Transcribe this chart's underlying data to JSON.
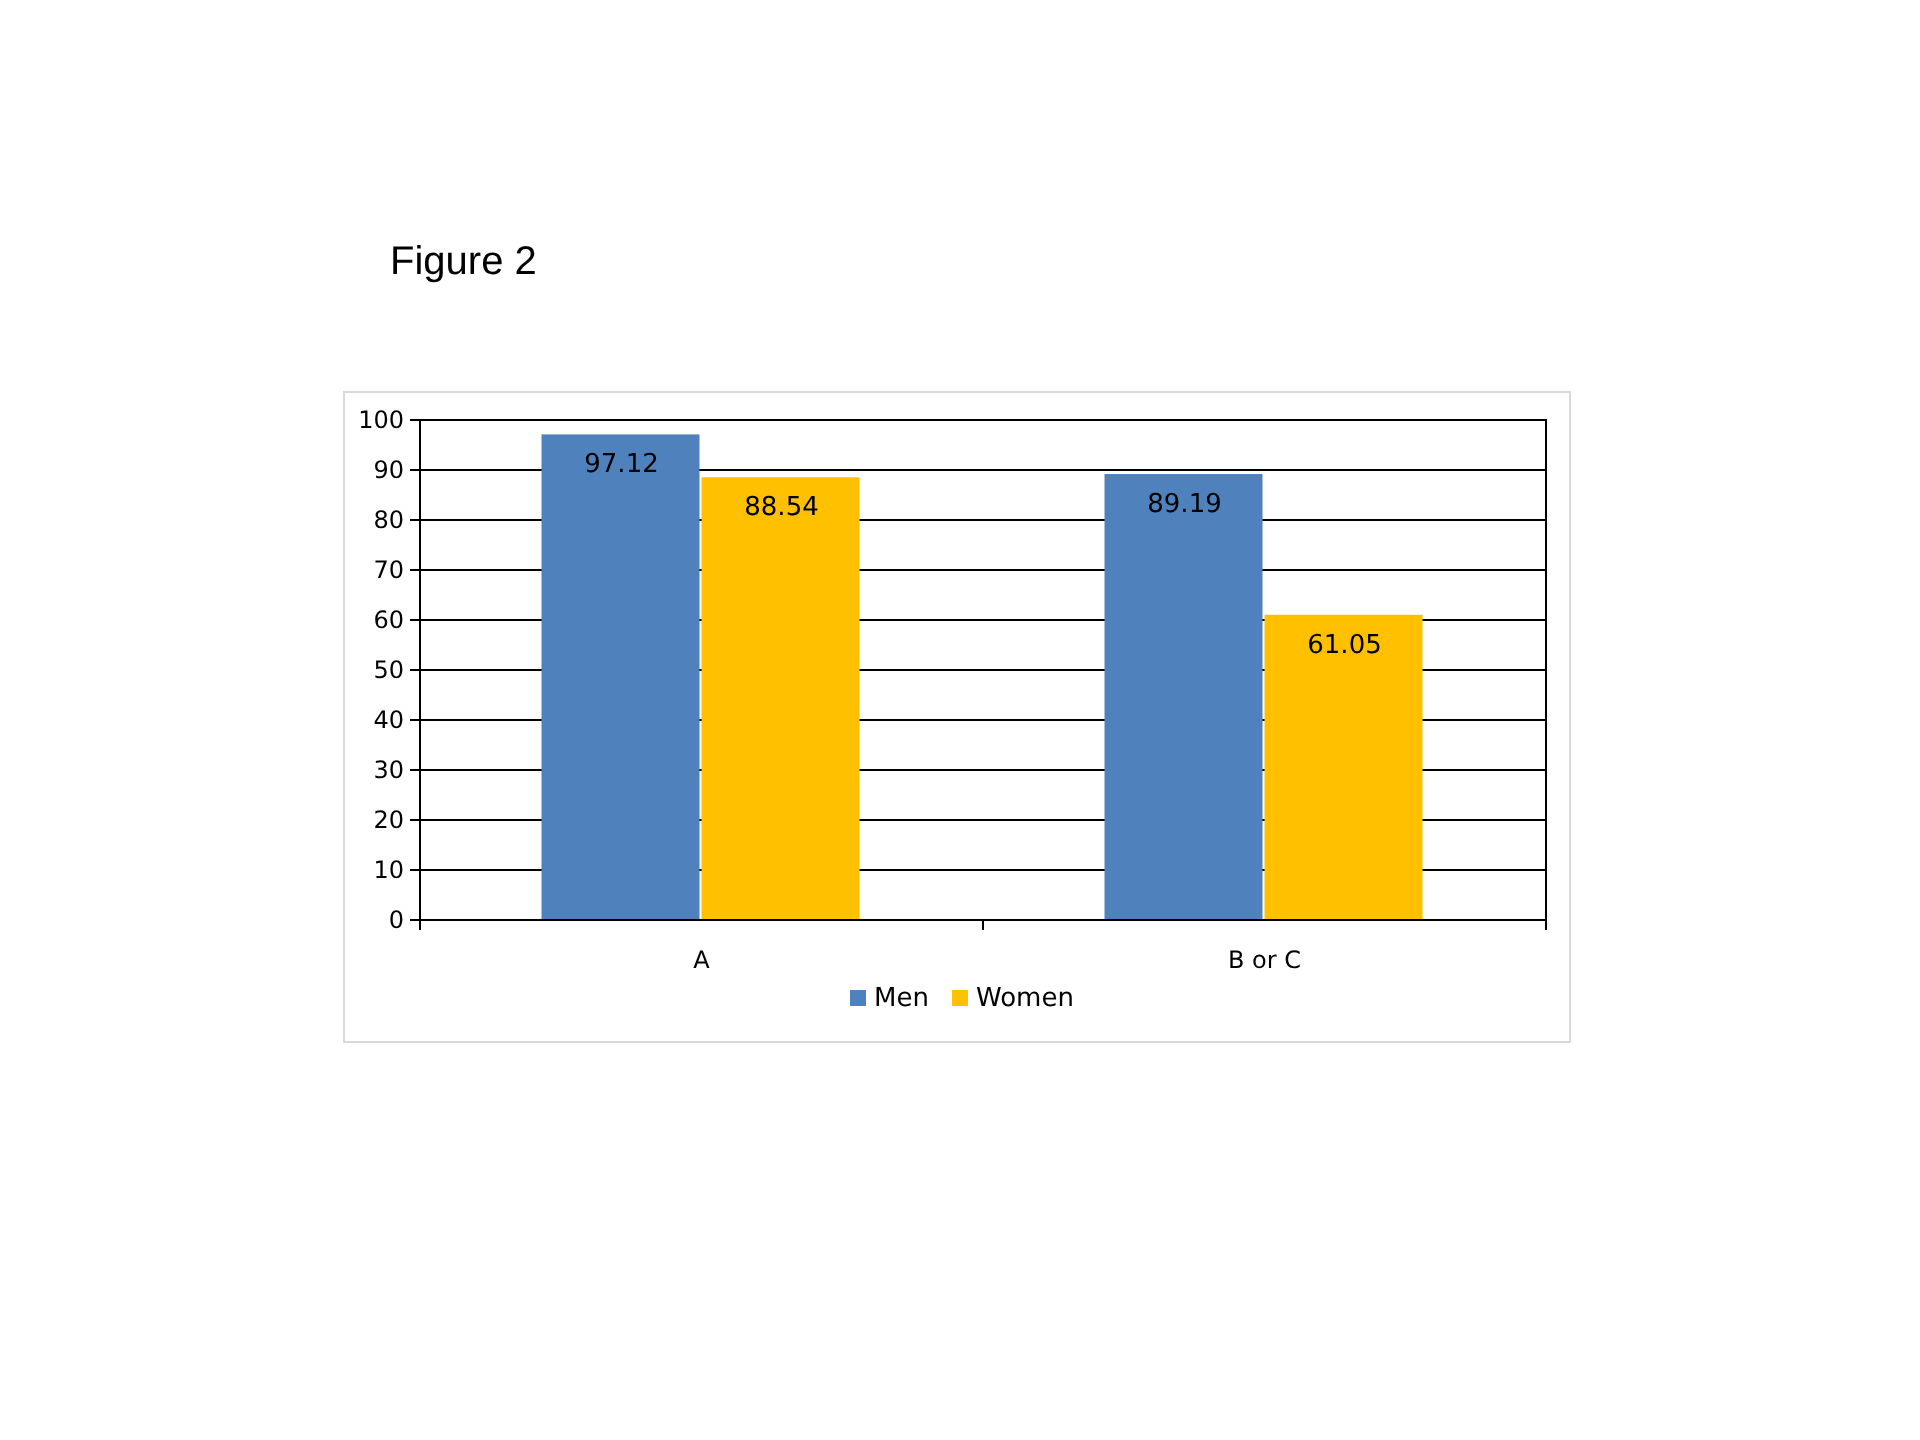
{
  "chart_data": {
    "type": "bar",
    "title": "Figure 2",
    "categories": [
      "A",
      "B or C"
    ],
    "series": [
      {
        "name": "Men",
        "color": "#4f81bd",
        "values": [
          97.12,
          89.19
        ]
      },
      {
        "name": "Women",
        "color": "#ffc000",
        "values": [
          88.54,
          61.05
        ]
      }
    ],
    "ylim": [
      0,
      100
    ],
    "yticks": [
      0,
      10,
      20,
      30,
      40,
      50,
      60,
      70,
      80,
      90,
      100
    ],
    "grid": "y",
    "legend": "bottom",
    "data_labels": true
  }
}
